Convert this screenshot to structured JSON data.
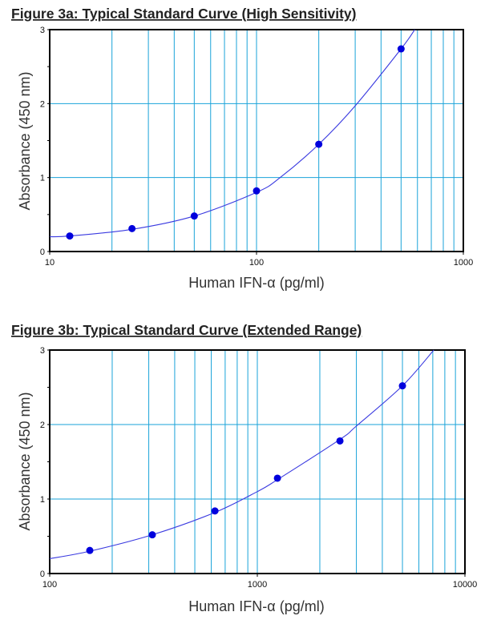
{
  "chart_data": [
    {
      "type": "scatter",
      "title": "Figure 3a: Typical Standard Curve (High Sensitivity)",
      "xlabel": "Human IFN-α (pg/ml)",
      "ylabel": "Absorbance (450 nm)",
      "xscale": "log",
      "xlim": [
        10,
        1000
      ],
      "ylim": [
        0,
        3
      ],
      "xticks": [
        "10",
        "100",
        "1000"
      ],
      "yticks": [
        "0",
        "1",
        "2",
        "3"
      ],
      "grid": true,
      "points": {
        "x": [
          12.5,
          25,
          50,
          100,
          200,
          500
        ],
        "y": [
          0.21,
          0.31,
          0.48,
          0.82,
          1.45,
          2.74
        ]
      },
      "fit_curve": {
        "x": [
          10,
          12.5,
          25,
          50,
          100,
          130,
          200,
          300,
          500,
          582
        ],
        "y": [
          0.2,
          0.21,
          0.3,
          0.48,
          0.8,
          1.0,
          1.45,
          1.97,
          2.74,
          3.0
        ]
      }
    },
    {
      "type": "scatter",
      "title": "Figure 3b: Typical Standard Curve (Extended Range)",
      "xlabel": "Human IFN-α (pg/ml)",
      "ylabel": "Absorbance (450 nm)",
      "xscale": "log",
      "xlim": [
        100,
        10000
      ],
      "ylim": [
        0,
        3
      ],
      "xticks": [
        "100",
        "1000",
        "10000"
      ],
      "yticks": [
        "0",
        "1",
        "2",
        "3"
      ],
      "grid": true,
      "points": {
        "x": [
          156,
          312,
          625,
          1250,
          2500,
          5000
        ],
        "y": [
          0.31,
          0.52,
          0.84,
          1.28,
          1.78,
          2.52
        ]
      },
      "fit_curve": {
        "x": [
          100,
          156,
          312,
          625,
          1000,
          1250,
          2500,
          3000,
          5000,
          7080
        ],
        "y": [
          0.2,
          0.3,
          0.52,
          0.82,
          1.1,
          1.26,
          1.8,
          1.98,
          2.52,
          3.0
        ]
      }
    }
  ],
  "colors": {
    "grid": "#1aa3d9",
    "curve": "#3a3ae0",
    "points": "#0000dd",
    "axis": "#000000"
  }
}
